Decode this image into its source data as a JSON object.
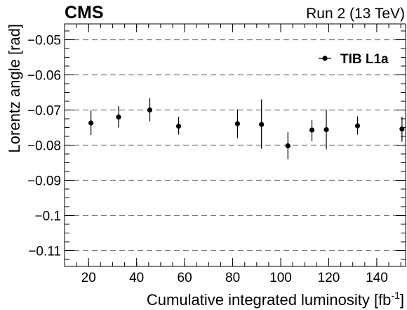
{
  "chart_data": {
    "type": "scatter",
    "experiment_label": "CMS",
    "run_label": "Run 2 (13 TeV)",
    "xlabel": "Cumulative integrated luminosity [fb",
    "xlabel_sup": "-1",
    "xlabel_close": "]",
    "ylabel": "Lorentz angle [rad]",
    "xlim": [
      10,
      152
    ],
    "ylim": [
      -0.1145,
      -0.0455
    ],
    "x_ticks": [
      20,
      40,
      60,
      80,
      100,
      120,
      140
    ],
    "x_tick_labels": [
      "20",
      "40",
      "60",
      "80",
      "100",
      "120",
      "140"
    ],
    "y_ticks": [
      -0.11,
      -0.1,
      -0.09,
      -0.08,
      -0.07,
      -0.06,
      -0.05
    ],
    "y_tick_labels": [
      "−0.11",
      "−0.1",
      "−0.09",
      "−0.08",
      "−0.07",
      "−0.06",
      "−0.05"
    ],
    "grid": "horizontal dashed",
    "legend_position": "top-right",
    "series": [
      {
        "name": "TIB L1a",
        "color": "#000000",
        "x": [
          21,
          32.5,
          45.5,
          57.5,
          82,
          92,
          103,
          113,
          119,
          132,
          150.5
        ],
        "y": [
          -0.0737,
          -0.072,
          -0.07,
          -0.0746,
          -0.0739,
          -0.0741,
          -0.0802,
          -0.0757,
          -0.0756,
          -0.0745,
          -0.0754
        ],
        "y_err_low": [
          0.0034,
          0.003,
          0.0032,
          0.0024,
          0.0041,
          0.0069,
          0.0038,
          0.0032,
          0.0056,
          0.0025,
          0.0036
        ],
        "y_err_high": [
          0.0036,
          0.0031,
          0.0034,
          0.0027,
          0.0041,
          0.0071,
          0.0039,
          0.0029,
          0.0057,
          0.0027,
          0.0035
        ]
      }
    ]
  }
}
